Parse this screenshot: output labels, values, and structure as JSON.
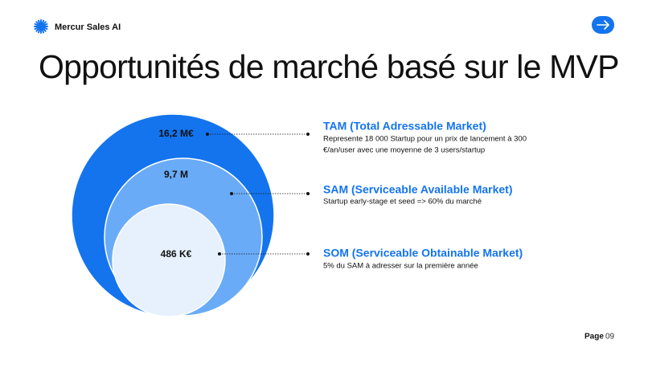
{
  "header": {
    "brand": "Mercur Sales AI"
  },
  "title": "Opportunités de marché basé sur le MVP",
  "markets": [
    {
      "value": "16,2 M€",
      "name": "TAM (Total Adressable Market)",
      "description": [
        "Represente 18 000 Startup pour un prix de lancement à 300",
        "€/an/user avec une moyenne de 3 users/startup"
      ]
    },
    {
      "value": "9,7 M",
      "name": "SAM (Serviceable Available Market)",
      "description": [
        "Startup early-stage et seed => 60% du marché"
      ]
    },
    {
      "value": "486 K€",
      "name": "SOM (Serviceable Obtainable Market)",
      "description": [
        "5% du SAM à adresser sur la première année"
      ]
    }
  ],
  "footer": {
    "label": "Page",
    "number": "09"
  }
}
